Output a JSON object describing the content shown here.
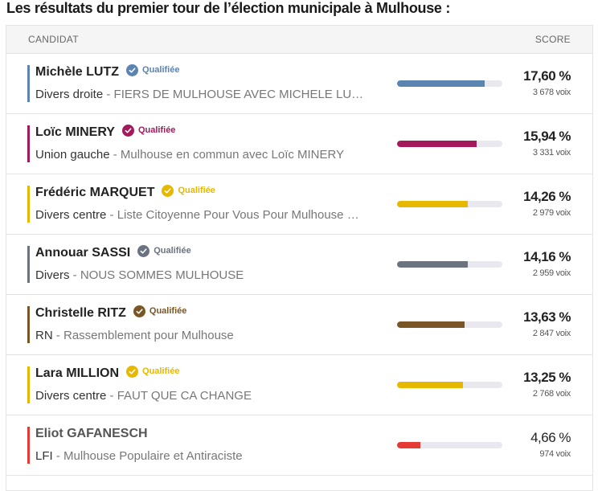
{
  "title": "Les résultats du premier tour de l’élection municipale à Mulhouse :",
  "header": {
    "candidate": "CANDIDAT",
    "score": "SCORE"
  },
  "rows": [
    {
      "name": "Michèle LUTZ",
      "qualified": "Qualifiée",
      "party": "Divers droite",
      "list": " - FIERS DE MULHOUSE AVEC MICHELE LU…",
      "pct": "17,60 %",
      "votes": "3 678 voix",
      "share": 0.176,
      "color": "#5b84b1"
    },
    {
      "name": "Loïc MINERY",
      "qualified": "Qualifiée",
      "party": "Union gauche",
      "list": " - Mulhouse en commun avec Loïc MINERY",
      "pct": "15,94 %",
      "votes": "3 331 voix",
      "share": 0.1594,
      "color": "#a3195b"
    },
    {
      "name": "Frédéric MARQUET",
      "qualified": "Qualifiée",
      "party": "Divers centre",
      "list": " - Liste Citoyenne Pour Vous Pour Mulhouse …",
      "pct": "14,26 %",
      "votes": "2 979 voix",
      "share": 0.1426,
      "color": "#e6b800"
    },
    {
      "name": "Annouar SASSI",
      "qualified": "Qualifiée",
      "party": "Divers",
      "list": " - NOUS SOMMES MULHOUSE",
      "pct": "14,16 %",
      "votes": "2 959 voix",
      "share": 0.1416,
      "color": "#6b7280"
    },
    {
      "name": "Christelle RITZ",
      "qualified": "Qualifiée",
      "party": "RN",
      "list": " - Rassemblement pour Mulhouse",
      "pct": "13,63 %",
      "votes": "2 847 voix",
      "share": 0.1363,
      "color": "#7a5525"
    },
    {
      "name": "Lara MILLION",
      "qualified": "Qualifiée",
      "party": "Divers centre",
      "list": " - FAUT QUE CA CHANGE",
      "pct": "13,25 %",
      "votes": "2 768 voix",
      "share": 0.1325,
      "color": "#e6b800"
    },
    {
      "name": "Eliot GAFANESCH",
      "qualified": "",
      "party": "LFI",
      "list": " - Mulhouse Populaire et Antiraciste",
      "pct": "4,66 %",
      "votes": "974 voix",
      "share": 0.0466,
      "color": "#e53935"
    }
  ]
}
